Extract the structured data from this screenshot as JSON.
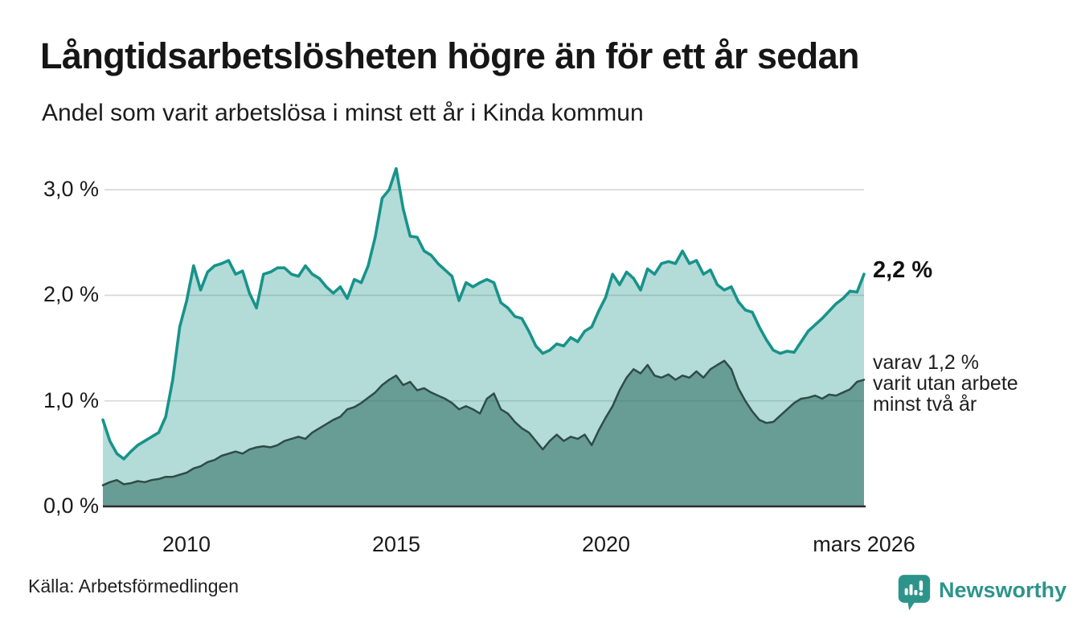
{
  "chart_data": {
    "type": "area",
    "title": "Långtidsarbetslösheten högre än för ett år sedan",
    "subtitle": "Andel som varit arbetslösa i minst ett år i Kinda kommun",
    "x_range": [
      2008.0,
      2026.1667
    ],
    "points_per_year": 6,
    "ylim": [
      0,
      3.3
    ],
    "grid": true,
    "yticks": [
      {
        "value": 0,
        "label": "0,0 %"
      },
      {
        "value": 1,
        "label": "1,0 %"
      },
      {
        "value": 2,
        "label": "2,0 %"
      },
      {
        "value": 3,
        "label": "3,0 %"
      }
    ],
    "xticks": [
      {
        "year": 2010,
        "label": "2010"
      },
      {
        "year": 2015,
        "label": "2015"
      },
      {
        "year": 2020,
        "label": "2020"
      },
      {
        "year": 2026.1667,
        "label": "mars 2026"
      }
    ],
    "series": [
      {
        "name": "Arbetslösa minst ett år",
        "stroke": "#17938a",
        "fill": "rgba(24,146,137,0.33)",
        "values": [
          0.82,
          0.62,
          0.5,
          0.45,
          0.52,
          0.58,
          0.62,
          0.66,
          0.7,
          0.85,
          1.2,
          1.7,
          1.95,
          2.28,
          2.05,
          2.22,
          2.28,
          2.3,
          2.33,
          2.2,
          2.23,
          2.02,
          1.88,
          2.2,
          2.22,
          2.26,
          2.26,
          2.2,
          2.18,
          2.28,
          2.2,
          2.16,
          2.08,
          2.02,
          2.08,
          1.97,
          2.15,
          2.12,
          2.28,
          2.55,
          2.92,
          3.0,
          3.2,
          2.82,
          2.56,
          2.55,
          2.42,
          2.38,
          2.3,
          2.24,
          2.18,
          1.95,
          2.12,
          2.08,
          2.12,
          2.15,
          2.12,
          1.93,
          1.88,
          1.8,
          1.78,
          1.66,
          1.52,
          1.45,
          1.48,
          1.54,
          1.52,
          1.6,
          1.56,
          1.66,
          1.7,
          1.85,
          1.98,
          2.2,
          2.1,
          2.22,
          2.16,
          2.05,
          2.25,
          2.2,
          2.3,
          2.32,
          2.3,
          2.42,
          2.3,
          2.33,
          2.2,
          2.24,
          2.1,
          2.05,
          2.08,
          1.94,
          1.86,
          1.84,
          1.7,
          1.58,
          1.48,
          1.45,
          1.47,
          1.46,
          1.56,
          1.66,
          1.72,
          1.78,
          1.85,
          1.92,
          1.97,
          2.04,
          2.03,
          2.2
        ]
      },
      {
        "name": "Utan arbete minst två år",
        "stroke": "#2e4c47",
        "fill": "rgba(42,106,95,0.55)",
        "values": [
          0.2,
          0.23,
          0.25,
          0.21,
          0.22,
          0.24,
          0.23,
          0.25,
          0.26,
          0.28,
          0.28,
          0.3,
          0.32,
          0.36,
          0.38,
          0.42,
          0.44,
          0.48,
          0.5,
          0.52,
          0.5,
          0.54,
          0.56,
          0.57,
          0.56,
          0.58,
          0.62,
          0.64,
          0.66,
          0.64,
          0.7,
          0.74,
          0.78,
          0.82,
          0.85,
          0.92,
          0.94,
          0.98,
          1.03,
          1.08,
          1.15,
          1.2,
          1.24,
          1.15,
          1.18,
          1.1,
          1.12,
          1.08,
          1.05,
          1.02,
          0.98,
          0.92,
          0.95,
          0.92,
          0.88,
          1.02,
          1.07,
          0.92,
          0.88,
          0.8,
          0.74,
          0.7,
          0.62,
          0.54,
          0.62,
          0.68,
          0.62,
          0.66,
          0.64,
          0.68,
          0.58,
          0.72,
          0.84,
          0.95,
          1.1,
          1.22,
          1.3,
          1.26,
          1.34,
          1.24,
          1.22,
          1.25,
          1.2,
          1.24,
          1.22,
          1.28,
          1.22,
          1.3,
          1.34,
          1.38,
          1.3,
          1.12,
          1.0,
          0.9,
          0.82,
          0.79,
          0.8,
          0.86,
          0.92,
          0.98,
          1.02,
          1.03,
          1.05,
          1.02,
          1.06,
          1.05,
          1.08,
          1.11,
          1.18,
          1.2
        ]
      }
    ],
    "end_labels": {
      "primary": "2,2 %",
      "secondary_lines": [
        "varav 1,2 %",
        "varit utan arbete",
        "minst två år"
      ]
    },
    "colors": {
      "accent_teal": "#17938a",
      "light_area": "#b3dbd6",
      "dark_area": "#72a099",
      "dark_line": "#2e4c47",
      "gridline": "#d8d8d8",
      "axis": "#2b2b2b",
      "brand_teal": "#2d948b"
    }
  },
  "footer": {
    "source": "Källa: Arbetsförmedlingen",
    "brand": "Newsworthy"
  }
}
